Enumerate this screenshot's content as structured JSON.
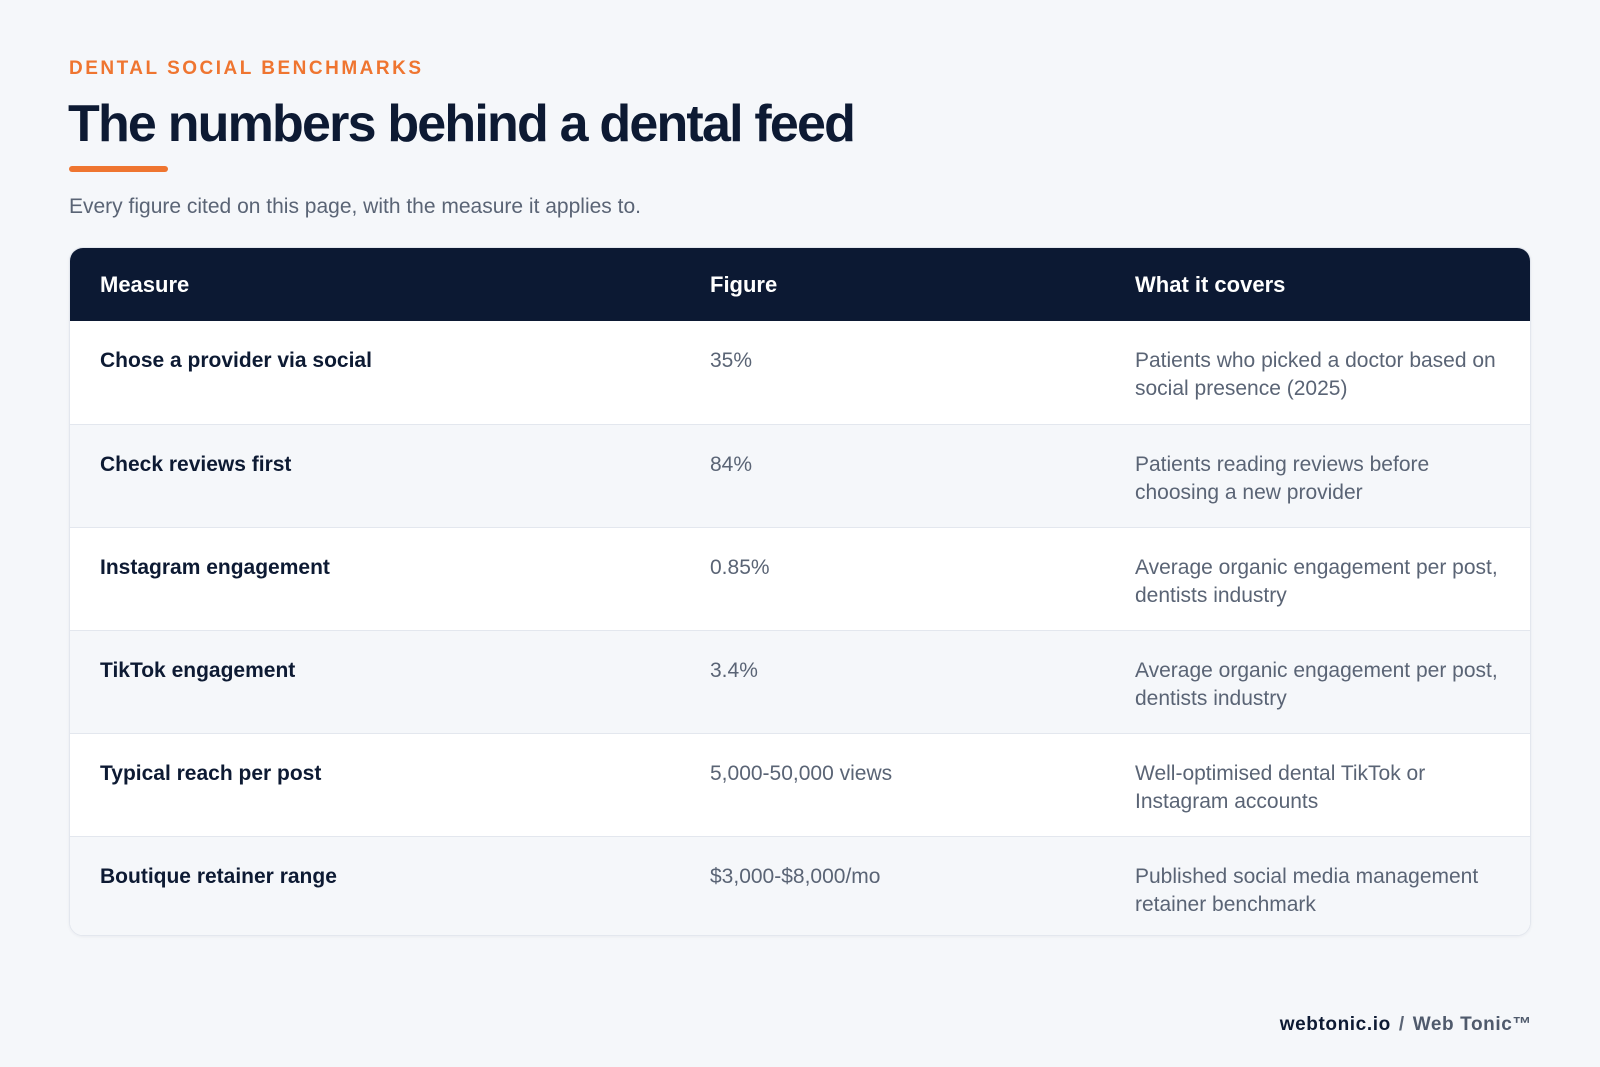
{
  "header": {
    "eyebrow": "DENTAL SOCIAL BENCHMARKS",
    "title": "The numbers behind a dental feed",
    "subtitle": "Every figure cited on this page, with the measure it applies to."
  },
  "table": {
    "columns": [
      "Measure",
      "Figure",
      "What it covers"
    ],
    "rows": [
      {
        "measure": "Chose a provider via social",
        "figure": "35%",
        "covers": "Patients who picked a doctor based on social presence (2025)"
      },
      {
        "measure": "Check reviews first",
        "figure": "84%",
        "covers": "Patients reading reviews before choosing a new provider"
      },
      {
        "measure": "Instagram engagement",
        "figure": "0.85%",
        "covers": "Average organic engagement per post, dentists industry"
      },
      {
        "measure": "TikTok engagement",
        "figure": "3.4%",
        "covers": "Average organic engagement per post, dentists industry"
      },
      {
        "measure": "Typical reach per post",
        "figure": "5,000-50,000 views",
        "covers": "Well-optimised dental TikTok or Instagram accounts"
      },
      {
        "measure": "Boutique retainer range",
        "figure": "$3,000-$8,000/mo",
        "covers": "Published social media management retainer benchmark"
      }
    ]
  },
  "footer": {
    "domain": "webtonic.io",
    "separator": "/",
    "brand": "Web Tonic™"
  },
  "colors": {
    "accent": "#ef7530",
    "navy": "#0c1933",
    "muted_text": "#5a6475",
    "page_background": "#f5f7fa",
    "alt_row": "#f5f7fa"
  }
}
